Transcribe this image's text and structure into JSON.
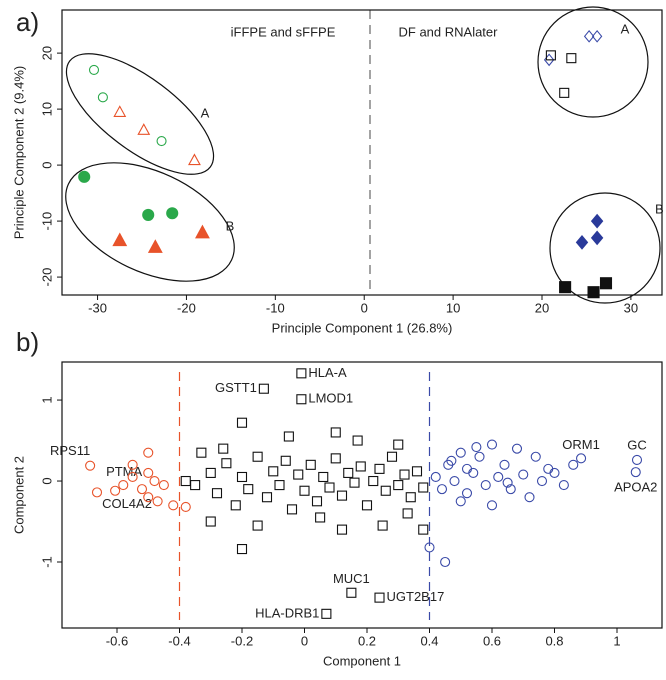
{
  "chart_data": [
    {
      "type": "scatter",
      "label": "a)",
      "xlabel": "Principle Component 1 (26.8%)",
      "ylabel": "Principle Component 2 (9.4%)",
      "xlim": [
        -34,
        33.5
      ],
      "ylim": [
        -23.2,
        27.7
      ],
      "xticks": [
        -30,
        -20,
        -10,
        0,
        10,
        20,
        30
      ],
      "yticks": [
        -20,
        -10,
        0,
        10,
        20
      ],
      "annotations": [
        "iFFPE and sFFPE",
        "DF and RNAlater",
        "A",
        "B",
        "A",
        "B"
      ],
      "series": [
        {
          "color": "#2aa84a",
          "marker": "circle",
          "filled": false,
          "x": [
            -30.4,
            -29.4,
            -22.8
          ],
          "y": [
            17,
            12.1,
            4.3
          ]
        },
        {
          "color": "#e8532a",
          "marker": "triangle",
          "filled": false,
          "x": [
            -27.5,
            -24.8,
            -19.1
          ],
          "y": [
            9.5,
            6.3,
            0.9
          ]
        },
        {
          "color": "#2aa84a",
          "marker": "circle",
          "filled": true,
          "x": [
            -31.5,
            -24.3,
            -21.6
          ],
          "y": [
            -2.1,
            -8.9,
            -8.6
          ]
        },
        {
          "color": "#e8532a",
          "marker": "triangle",
          "filled": true,
          "x": [
            -27.5,
            -23.5,
            -18.2
          ],
          "y": [
            -13.4,
            -14.6,
            -12
          ]
        },
        {
          "color": "#3a4aa8",
          "marker": "diamond",
          "filled": false,
          "x": [
            20.8,
            25.3,
            26.2
          ],
          "y": [
            18.8,
            23,
            23
          ]
        },
        {
          "color": "#111111",
          "marker": "square",
          "filled": false,
          "x": [
            21,
            23.3,
            22.5
          ],
          "y": [
            19.6,
            19.1,
            12.9
          ]
        },
        {
          "color": "#2a3a9a",
          "marker": "diamond",
          "filled": true,
          "x": [
            26.2,
            26.2,
            24.5
          ],
          "y": [
            -10,
            -13,
            -13.8
          ]
        },
        {
          "color": "#111111",
          "marker": "square",
          "filled": true,
          "x": [
            22.6,
            25.8,
            27.2
          ],
          "y": [
            -21.8,
            -22.7,
            -21.1
          ]
        }
      ]
    },
    {
      "type": "scatter",
      "label": "b)",
      "xlabel": "Component 1",
      "ylabel": "Component 2",
      "xlim": [
        -0.776,
        1.144
      ],
      "ylim": [
        -1.815,
        1.47
      ],
      "xticks": [
        -0.6,
        -0.4,
        -0.2,
        0,
        0.2,
        0.4,
        0.6,
        0.8,
        1.0
      ],
      "yticks": [
        -1,
        0,
        1
      ],
      "vlines": [
        {
          "x": -0.4,
          "color": "#e8532a"
        },
        {
          "x": 0.4,
          "color": "#3a4aa8"
        }
      ],
      "series": [
        {
          "color": "#111111",
          "marker": "square",
          "filled": false,
          "labels": [
            "HLA-A",
            "GSTT1",
            "LMOD1",
            "MUC1",
            "UGT2B17",
            "HLA-DRB1",
            null,
            null,
            null,
            null,
            null,
            null,
            null,
            null,
            null,
            null,
            null,
            null,
            null,
            null,
            null,
            null,
            null,
            null,
            null,
            null,
            null,
            null,
            null,
            null,
            null,
            null,
            null,
            null,
            null,
            null,
            null,
            null,
            null,
            null,
            null,
            null,
            null,
            null,
            null,
            null,
            null,
            null,
            null,
            null,
            null,
            null,
            null,
            null,
            null,
            null
          ],
          "x": [
            -0.01,
            -0.13,
            -0.01,
            0.15,
            0.24,
            0.07,
            -0.38,
            -0.35,
            -0.3,
            -0.28,
            -0.25,
            -0.22,
            -0.2,
            -0.18,
            -0.15,
            -0.12,
            -0.1,
            -0.08,
            -0.06,
            -0.04,
            -0.02,
            0.0,
            0.02,
            0.04,
            0.06,
            0.08,
            0.1,
            0.12,
            0.14,
            0.16,
            0.18,
            0.2,
            0.22,
            0.24,
            0.26,
            0.28,
            0.3,
            0.32,
            0.34,
            0.36,
            0.38,
            -0.2,
            -0.2,
            0.1,
            -0.05,
            0.12,
            -0.3,
            0.25,
            0.38,
            0.3,
            -0.15,
            -0.33,
            0.05,
            -0.26,
            0.17,
            0.33
          ],
          "y": [
            1.33,
            1.14,
            1.01,
            -1.38,
            -1.44,
            -1.64,
            0.0,
            -0.05,
            0.1,
            -0.15,
            0.22,
            -0.3,
            0.05,
            -0.1,
            0.3,
            -0.2,
            0.12,
            -0.05,
            0.25,
            -0.35,
            0.08,
            -0.12,
            0.2,
            -0.25,
            0.05,
            -0.08,
            0.28,
            -0.18,
            0.1,
            -0.02,
            0.18,
            -0.3,
            0.0,
            0.15,
            -0.12,
            0.3,
            -0.05,
            0.08,
            -0.2,
            0.12,
            -0.08,
            0.72,
            -0.84,
            0.6,
            0.55,
            -0.6,
            -0.5,
            -0.55,
            -0.6,
            0.45,
            -0.55,
            0.35,
            -0.45,
            0.4,
            0.5,
            -0.4
          ]
        },
        {
          "color": "#3a4aa8",
          "marker": "circle",
          "filled": false,
          "labels": [
            "ORM1",
            "GC",
            "APOA2",
            null,
            null,
            null,
            null,
            null,
            null,
            null,
            null,
            null,
            null,
            null,
            null,
            null,
            null,
            null,
            null,
            null,
            null,
            null,
            null,
            null,
            null,
            null,
            null,
            null,
            null,
            null,
            null,
            null,
            null
          ],
          "x": [
            0.885,
            1.064,
            1.06,
            0.4,
            0.45,
            0.42,
            0.44,
            0.46,
            0.48,
            0.5,
            0.52,
            0.54,
            0.56,
            0.58,
            0.6,
            0.62,
            0.64,
            0.66,
            0.68,
            0.7,
            0.72,
            0.74,
            0.76,
            0.78,
            0.8,
            0.83,
            0.86,
            0.5,
            0.55,
            0.6,
            0.65,
            0.47,
            0.52
          ],
          "y": [
            0.28,
            0.26,
            0.11,
            -0.82,
            -1.0,
            0.05,
            -0.1,
            0.2,
            0.0,
            0.35,
            -0.15,
            0.1,
            0.3,
            -0.05,
            0.45,
            0.05,
            0.2,
            -0.1,
            0.4,
            0.08,
            -0.2,
            0.3,
            0.0,
            0.15,
            0.1,
            -0.05,
            0.2,
            -0.25,
            0.42,
            -0.3,
            -0.02,
            0.25,
            0.15
          ]
        },
        {
          "color": "#e8532a",
          "marker": "circle",
          "filled": false,
          "labels": [
            "RPS11",
            "PTMA",
            "COL4A2",
            null,
            null,
            null,
            null,
            null,
            null,
            null,
            null,
            null,
            null,
            null,
            null
          ],
          "x": [
            -0.686,
            -0.606,
            -0.664,
            -0.5,
            -0.55,
            -0.5,
            -0.48,
            -0.45,
            -0.52,
            -0.5,
            -0.47,
            -0.42,
            -0.38,
            -0.55,
            -0.58
          ],
          "y": [
            0.19,
            -0.12,
            -0.14,
            0.35,
            0.2,
            0.1,
            0.0,
            -0.05,
            -0.1,
            -0.2,
            -0.25,
            -0.3,
            -0.32,
            0.05,
            -0.05
          ]
        }
      ]
    }
  ]
}
